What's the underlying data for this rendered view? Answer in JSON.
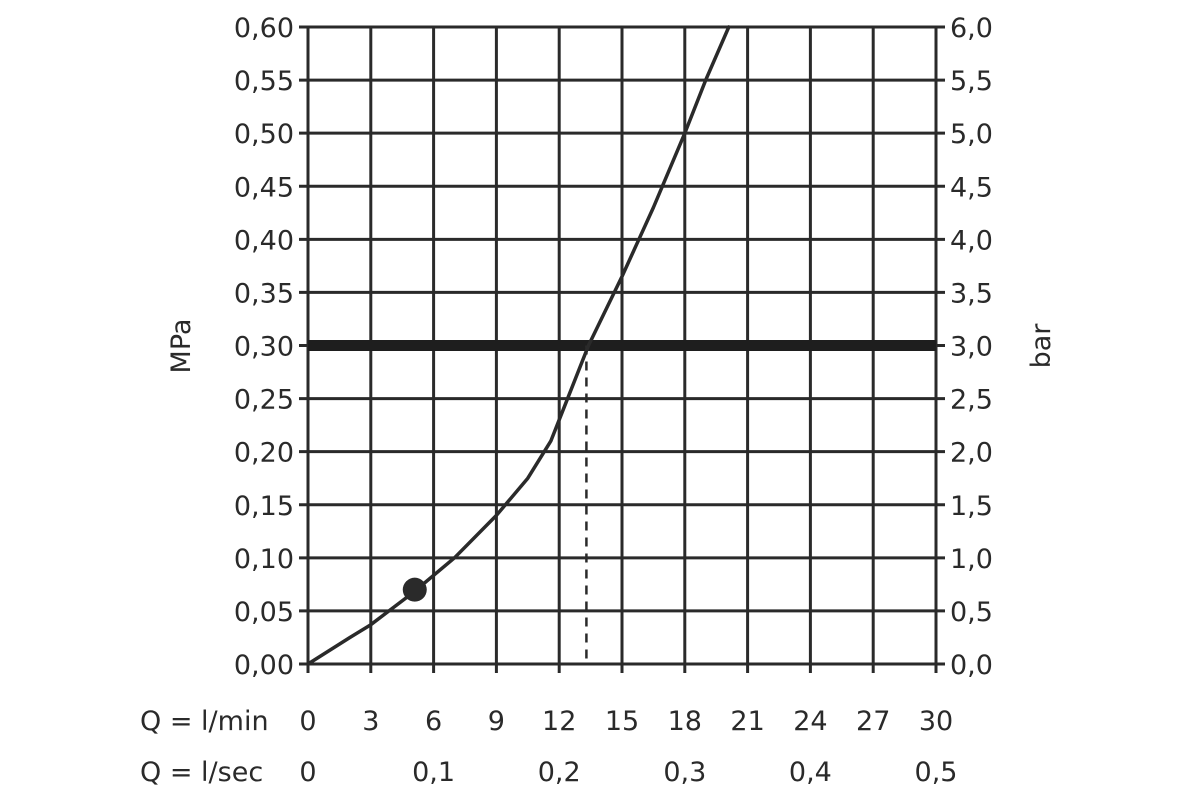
{
  "chart_data": {
    "type": "line",
    "title": "",
    "ylabel_left": "MPa",
    "ylabel_right": "bar",
    "xlabel_primary": "Q = l/min",
    "xlabel_secondary": "Q = l/sec",
    "xlim": [
      0,
      30
    ],
    "ylim": [
      0,
      0.6
    ],
    "grid": true,
    "x_ticks_primary": [
      "0",
      "3",
      "6",
      "9",
      "12",
      "15",
      "18",
      "21",
      "24",
      "27",
      "30"
    ],
    "x_ticks_secondary": [
      {
        "x": 0,
        "label": "0"
      },
      {
        "x": 6,
        "label": "0,1"
      },
      {
        "x": 12,
        "label": "0,2"
      },
      {
        "x": 18,
        "label": "0,3"
      },
      {
        "x": 24,
        "label": "0,4"
      },
      {
        "x": 30,
        "label": "0,5"
      }
    ],
    "y_ticks_left": [
      "0,00",
      "0,05",
      "0,10",
      "0,15",
      "0,20",
      "0,25",
      "0,30",
      "0,35",
      "0,40",
      "0,45",
      "0,50",
      "0,55",
      "0,60"
    ],
    "y_ticks_right": [
      "0,0",
      "0,5",
      "1,0",
      "1,5",
      "2,0",
      "2,5",
      "3,0",
      "3,5",
      "4,0",
      "4,5",
      "5,0",
      "5,5",
      "6,0"
    ],
    "series": [
      {
        "x": [
          0,
          2,
          3,
          5,
          7,
          9,
          10.5,
          11.6,
          12.2,
          13.4,
          15,
          16.5,
          18,
          19,
          20.1
        ],
        "y": [
          0,
          0.025,
          0.037,
          0.067,
          0.1,
          0.14,
          0.175,
          0.21,
          0.24,
          0.3,
          0.365,
          0.43,
          0.5,
          0.55,
          0.6
        ],
        "color": "#2a2a2a"
      }
    ],
    "marker_point": {
      "x": 5.1,
      "y": 0.07
    },
    "reference_line_y": 0.3,
    "dashed_drop": {
      "x": 13.3,
      "y_from": 0.3,
      "y_to": 0
    }
  }
}
